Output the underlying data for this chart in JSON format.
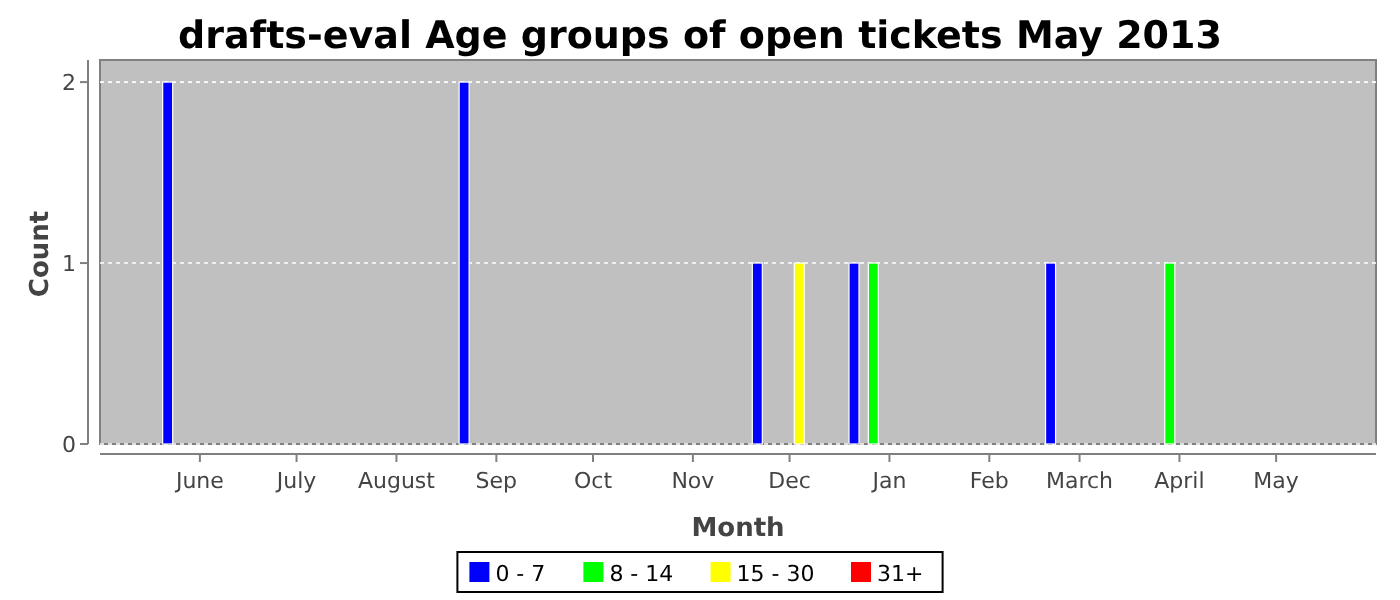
{
  "chart_data": {
    "type": "bar",
    "title": "drafts-eval Age groups of open tickets May 2013",
    "xlabel": "Month",
    "ylabel": "Count",
    "series": [
      {
        "name": "0 - 7",
        "color": "#0000ff",
        "x": [
          "2012-05-22",
          "2012-08-22",
          "2012-11-21",
          "2012-12-21",
          "2013-02-20"
        ],
        "values": [
          2,
          2,
          1,
          1,
          1
        ]
      },
      {
        "name": "8 - 14",
        "color": "#00ff00",
        "x": [
          "2012-12-27",
          "2013-03-29"
        ],
        "values": [
          1,
          1
        ]
      },
      {
        "name": "15 - 30",
        "color": "#ffff00",
        "x": [
          "2012-12-04"
        ],
        "values": [
          1
        ]
      },
      {
        "name": "31+",
        "color": "#ff0000"
      }
    ],
    "xlim": [
      "2012-05-01",
      "2013-06-01"
    ],
    "xticks": [
      {
        "value": "2012-06-01",
        "label": "June"
      },
      {
        "value": "2012-07-01",
        "label": "July"
      },
      {
        "value": "2012-08-01",
        "label": "August"
      },
      {
        "value": "2012-09-01",
        "label": "Sep"
      },
      {
        "value": "2012-10-01",
        "label": "Oct"
      },
      {
        "value": "2012-11-01",
        "label": "Nov"
      },
      {
        "value": "2012-12-01",
        "label": "Dec"
      },
      {
        "value": "2013-01-01",
        "label": "Jan"
      },
      {
        "value": "2013-02-01",
        "label": "Feb"
      },
      {
        "value": "2013-03-01",
        "label": "March"
      },
      {
        "value": "2013-04-01",
        "label": "April"
      },
      {
        "value": "2013-05-01",
        "label": "May"
      }
    ],
    "ylim": [
      0,
      2.1
    ],
    "yticks": [
      0,
      1,
      2
    ],
    "grid": "y",
    "legend": "bottom"
  }
}
